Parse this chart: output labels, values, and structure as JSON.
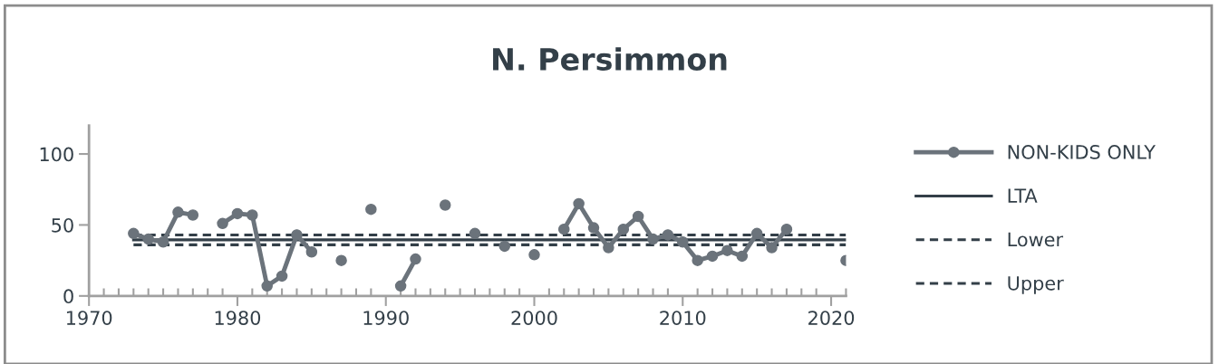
{
  "chart_data": {
    "type": "line",
    "title": "N. Persimmon",
    "x": [
      1973,
      1974,
      1975,
      1976,
      1977,
      1978,
      1979,
      1980,
      1981,
      1982,
      1983,
      1984,
      1985,
      1986,
      1987,
      1988,
      1989,
      1990,
      1991,
      1992,
      1993,
      1994,
      1995,
      1996,
      1997,
      1998,
      1999,
      2000,
      2001,
      2002,
      2003,
      2004,
      2005,
      2006,
      2007,
      2008,
      2009,
      2010,
      2011,
      2012,
      2013,
      2014,
      2015,
      2016,
      2017,
      2018,
      2019,
      2020,
      2021
    ],
    "series": [
      {
        "name": "NON-KIDS ONLY",
        "color": "#6b737b",
        "marker": "circle",
        "line_style": "solid",
        "values": [
          44,
          40,
          38,
          59,
          57,
          null,
          51,
          58,
          57,
          7,
          14,
          43,
          31,
          null,
          25,
          null,
          61,
          null,
          7,
          26,
          null,
          64,
          null,
          44,
          null,
          35,
          null,
          29,
          null,
          47,
          65,
          48,
          34,
          47,
          56,
          40,
          43,
          38,
          25,
          28,
          32,
          28,
          44,
          34,
          47,
          null,
          null,
          null,
          25
        ]
      },
      {
        "name": "LTA",
        "color": "#333f48",
        "marker": "none",
        "line_style": "solid",
        "values": [
          39.5,
          39.5,
          39.5,
          39.5,
          39.5,
          39.5,
          39.5,
          39.5,
          39.5,
          39.5,
          39.5,
          39.5,
          39.5,
          39.5,
          39.5,
          39.5,
          39.5,
          39.5,
          39.5,
          39.5,
          39.5,
          39.5,
          39.5,
          39.5,
          39.5,
          39.5,
          39.5,
          39.5,
          39.5,
          39.5,
          39.5,
          39.5,
          39.5,
          39.5,
          39.5,
          39.5,
          39.5,
          39.5,
          39.5,
          39.5,
          39.5,
          39.5,
          39.5,
          39.5,
          39.5,
          39.5,
          39.5,
          39.5,
          39.5
        ]
      },
      {
        "name": "Lower",
        "color": "#333f48",
        "marker": "none",
        "line_style": "dashed",
        "values": [
          36,
          36,
          36,
          36,
          36,
          36,
          36,
          36,
          36,
          36,
          36,
          36,
          36,
          36,
          36,
          36,
          36,
          36,
          36,
          36,
          36,
          36,
          36,
          36,
          36,
          36,
          36,
          36,
          36,
          36,
          36,
          36,
          36,
          36,
          36,
          36,
          36,
          36,
          36,
          36,
          36,
          36,
          36,
          36,
          36,
          36,
          36,
          36,
          36
        ]
      },
      {
        "name": "Upper",
        "color": "#333f48",
        "marker": "none",
        "line_style": "dashed",
        "values": [
          43,
          43,
          43,
          43,
          43,
          43,
          43,
          43,
          43,
          43,
          43,
          43,
          43,
          43,
          43,
          43,
          43,
          43,
          43,
          43,
          43,
          43,
          43,
          43,
          43,
          43,
          43,
          43,
          43,
          43,
          43,
          43,
          43,
          43,
          43,
          43,
          43,
          43,
          43,
          43,
          43,
          43,
          43,
          43,
          43,
          43,
          43,
          43,
          43
        ]
      }
    ],
    "xlim": [
      1970,
      2021
    ],
    "xticks": [
      1970,
      1980,
      1990,
      2000,
      2010,
      2020
    ],
    "ylim": [
      0,
      120
    ],
    "yticks": [
      0,
      50,
      100
    ],
    "grid": false,
    "legend": "right"
  }
}
